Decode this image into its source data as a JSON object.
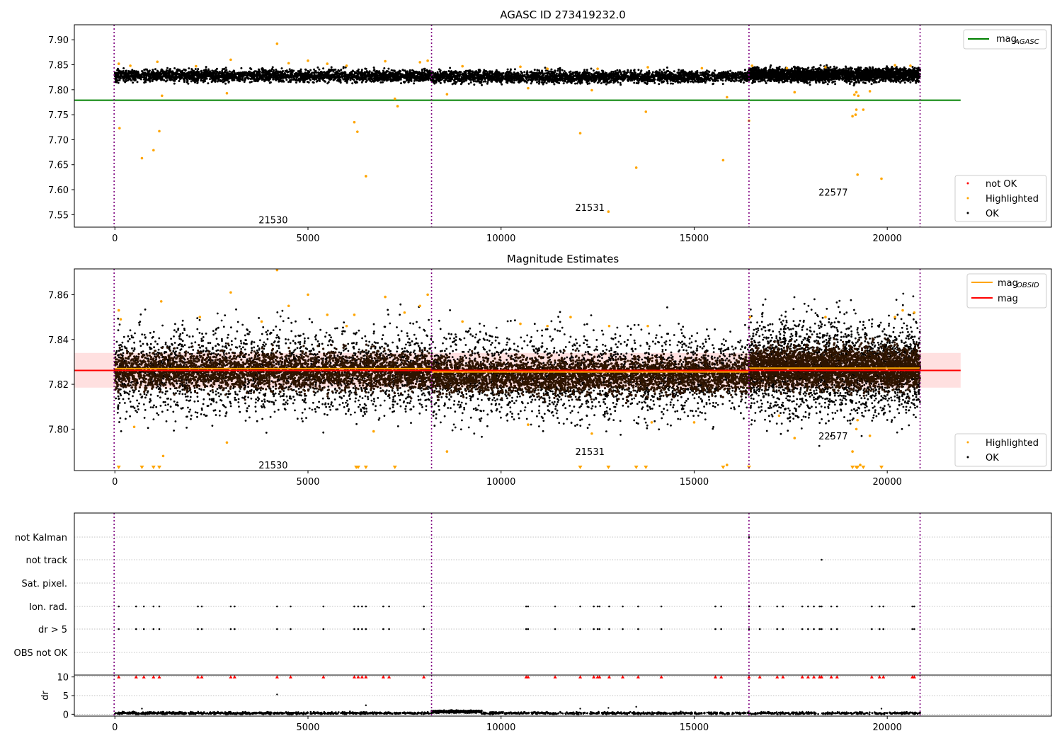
{
  "chart_data": [
    {
      "type": "scatter",
      "title": "AGASC ID 273419232.0",
      "xlabel": "",
      "ylabel": "",
      "xlim": [
        -1050,
        24250
      ],
      "ylim": [
        7.525,
        7.93
      ],
      "x_ticks": [
        0,
        5000,
        10000,
        15000,
        20000
      ],
      "y_ticks": [
        7.55,
        7.6,
        7.65,
        7.7,
        7.75,
        7.8,
        7.85,
        7.9
      ],
      "y_tick_labels": [
        "7.55",
        "7.60",
        "7.65",
        "7.70",
        "7.75",
        "7.80",
        "7.85",
        "7.90"
      ],
      "grid": false,
      "obsid_boundaries": [
        -20,
        8200,
        16420,
        20850
      ],
      "obsid_labels": [
        {
          "text": "21530",
          "x": 4100,
          "y": 7.54
        },
        {
          "text": "21531",
          "x": 12300,
          "y": 7.565
        },
        {
          "text": "22577",
          "x": 18600,
          "y": 7.595
        }
      ],
      "lines": [
        {
          "name": "mag_AGASC",
          "label_main": "mag",
          "label_sub": "AGASC",
          "color": "#008000",
          "y": 7.779,
          "x": [
            -1050,
            21900
          ]
        }
      ],
      "ok_band": {
        "x_range": [
          0,
          20850
        ],
        "segments": [
          {
            "x": [
              0,
              8200
            ],
            "center": 7.828,
            "spread": 0.012
          },
          {
            "x": [
              8200,
              16420
            ],
            "center": 7.826,
            "spread": 0.012
          },
          {
            "x": [
              16420,
              20850
            ],
            "center": 7.83,
            "spread": 0.014
          }
        ],
        "color": "#000000"
      },
      "highlighted_points": [
        [
          120,
          7.723
        ],
        [
          700,
          7.663
        ],
        [
          1000,
          7.679
        ],
        [
          1150,
          7.717
        ],
        [
          1220,
          7.788
        ],
        [
          2900,
          7.793
        ],
        [
          6200,
          7.735
        ],
        [
          6280,
          7.716
        ],
        [
          6500,
          7.627
        ],
        [
          7250,
          7.782
        ],
        [
          7320,
          7.767
        ],
        [
          8600,
          7.791
        ],
        [
          10700,
          7.803
        ],
        [
          12050,
          7.713
        ],
        [
          12350,
          7.799
        ],
        [
          12780,
          7.556
        ],
        [
          13500,
          7.644
        ],
        [
          13750,
          7.756
        ],
        [
          15750,
          7.659
        ],
        [
          15850,
          7.785
        ],
        [
          16420,
          7.738
        ],
        [
          17600,
          7.795
        ],
        [
          19100,
          7.747
        ],
        [
          19180,
          7.75
        ],
        [
          19200,
          7.76
        ],
        [
          19230,
          7.63
        ],
        [
          19380,
          7.76
        ],
        [
          19550,
          7.797
        ],
        [
          19850,
          7.622
        ],
        [
          4200,
          7.892
        ],
        [
          3000,
          7.86
        ],
        [
          4500,
          7.853
        ],
        [
          5000,
          7.858
        ],
        [
          5500,
          7.852
        ],
        [
          6000,
          7.848
        ],
        [
          7000,
          7.857
        ],
        [
          7900,
          7.855
        ],
        [
          8100,
          7.858
        ],
        [
          9000,
          7.847
        ],
        [
          10500,
          7.846
        ],
        [
          11200,
          7.842
        ],
        [
          12500,
          7.842
        ],
        [
          13800,
          7.845
        ],
        [
          15200,
          7.843
        ],
        [
          16500,
          7.848
        ],
        [
          17400,
          7.843
        ],
        [
          18400,
          7.845
        ],
        [
          20200,
          7.849
        ],
        [
          20600,
          7.848
        ],
        [
          100,
          7.852
        ],
        [
          400,
          7.848
        ],
        [
          1100,
          7.856
        ],
        [
          2100,
          7.847
        ],
        [
          19150,
          7.79
        ],
        [
          19200,
          7.795
        ],
        [
          19250,
          7.788
        ]
      ],
      "legend": {
        "position": "lower-right",
        "entries": [
          {
            "label": "not OK",
            "color": "#ff0000"
          },
          {
            "label": "Highlighted",
            "color": "#ffa500"
          },
          {
            "label": "OK",
            "color": "#000000"
          }
        ]
      },
      "legend_lines": {
        "position": "upper-right"
      }
    },
    {
      "type": "scatter",
      "title": "Magnitude Estimates",
      "xlabel": "",
      "ylabel": "",
      "xlim": [
        -1050,
        24250
      ],
      "ylim": [
        7.7815,
        7.8715
      ],
      "x_ticks": [
        0,
        5000,
        10000,
        15000,
        20000
      ],
      "y_ticks": [
        7.8,
        7.82,
        7.84,
        7.86
      ],
      "y_tick_labels": [
        "7.80",
        "7.82",
        "7.84",
        "7.86"
      ],
      "grid": false,
      "obsid_boundaries": [
        -20,
        8200,
        16420,
        20850
      ],
      "obsid_labels": [
        {
          "text": "21530",
          "x": 4100,
          "y": 7.784
        },
        {
          "text": "21531",
          "x": 12300,
          "y": 7.79
        },
        {
          "text": "22577",
          "x": 18600,
          "y": 7.797
        }
      ],
      "mag": {
        "value": 7.8262,
        "band": [
          7.8185,
          7.834
        ],
        "color": "#ff0000",
        "x": [
          -1050,
          21900
        ]
      },
      "mag_obsid": [
        {
          "x": [
            0,
            8200
          ],
          "y": 7.827
        },
        {
          "x": [
            8200,
            16420
          ],
          "y": 7.8255
        },
        {
          "x": [
            16420,
            20850
          ],
          "y": 7.8272
        }
      ],
      "ok_band": {
        "segments": [
          {
            "x": [
              0,
              8200
            ],
            "center": 7.826,
            "spread": 0.009
          },
          {
            "x": [
              8200,
              16420
            ],
            "center": 7.824,
            "spread": 0.009
          },
          {
            "x": [
              16420,
              20850
            ],
            "center": 7.8275,
            "spread": 0.01
          }
        ],
        "color": "#000000",
        "core_color": "#2e1400"
      },
      "highlighted_points": [
        [
          100,
          7.853
        ],
        [
          150,
          7.849
        ],
        [
          500,
          7.801
        ],
        [
          1200,
          7.857
        ],
        [
          1250,
          7.788
        ],
        [
          2200,
          7.85
        ],
        [
          3000,
          7.861
        ],
        [
          2900,
          7.794
        ],
        [
          3800,
          7.848
        ],
        [
          4200,
          7.871
        ],
        [
          4500,
          7.855
        ],
        [
          5000,
          7.86
        ],
        [
          5500,
          7.851
        ],
        [
          6000,
          7.846
        ],
        [
          6200,
          7.851
        ],
        [
          6700,
          7.799
        ],
        [
          7000,
          7.859
        ],
        [
          7500,
          7.852
        ],
        [
          7900,
          7.855
        ],
        [
          8100,
          7.86
        ],
        [
          8600,
          7.79
        ],
        [
          9000,
          7.848
        ],
        [
          10500,
          7.847
        ],
        [
          10700,
          7.802
        ],
        [
          11200,
          7.846
        ],
        [
          11800,
          7.85
        ],
        [
          12350,
          7.798
        ],
        [
          12800,
          7.846
        ],
        [
          13800,
          7.846
        ],
        [
          13900,
          7.803
        ],
        [
          15000,
          7.803
        ],
        [
          15850,
          7.784
        ],
        [
          16450,
          7.85
        ],
        [
          17200,
          7.806
        ],
        [
          17600,
          7.796
        ],
        [
          18400,
          7.85
        ],
        [
          19100,
          7.79
        ],
        [
          19200,
          7.8
        ],
        [
          19230,
          7.804
        ],
        [
          19300,
          7.784
        ],
        [
          19550,
          7.797
        ],
        [
          20200,
          7.85
        ],
        [
          20400,
          7.853
        ],
        [
          20700,
          7.852
        ]
      ],
      "below_range_markers_x": [
        100,
        700,
        1000,
        1150,
        6250,
        6300,
        6500,
        7250,
        12050,
        12780,
        13500,
        13750,
        15750,
        16420,
        19100,
        19200,
        19230,
        19380,
        19850
      ],
      "legend": {
        "position": "lower-right",
        "entries": [
          {
            "label": "Highlighted",
            "color": "#ffa500"
          },
          {
            "label": "OK",
            "color": "#000000"
          }
        ]
      },
      "legend_lines": {
        "position": "upper-right",
        "entries": [
          {
            "label_main": "mag",
            "label_sub": "OBSID",
            "color": "#ffa500"
          },
          {
            "label_main": "mag",
            "label_sub": "",
            "color": "#ff0000"
          }
        ]
      }
    },
    {
      "type": "scatter",
      "title": "",
      "xlim": [
        -1050,
        24250
      ],
      "categories": [
        "not Kalman",
        "not track",
        "Sat. pixel.",
        "Ion. rad.",
        "dr > 5",
        "OBS not OK"
      ],
      "grid": "horizontal dotted",
      "obsid_boundaries": [
        -20,
        8200,
        16420,
        20850
      ],
      "flag_events": {
        "not Kalman": [
          16420
        ],
        "not track": [
          18300
        ],
        "Sat. pixel.": [],
        "Ion. rad.": [
          100,
          550,
          750,
          1000,
          1150,
          2150,
          2250,
          3000,
          3100,
          4200,
          4550,
          5400,
          6200,
          6300,
          6400,
          6500,
          6950,
          7100,
          8000,
          10650,
          10700,
          11400,
          12050,
          12400,
          12500,
          12550,
          12800,
          13150,
          13550,
          14150,
          15550,
          15700,
          16420,
          16700,
          17150,
          17300,
          17800,
          17950,
          18100,
          18250,
          18300,
          18550,
          18700,
          19600,
          19800,
          19900,
          20650,
          20700
        ],
        "dr > 5": [
          100,
          550,
          750,
          1000,
          1150,
          2150,
          2250,
          3000,
          3100,
          4200,
          4550,
          5400,
          6200,
          6300,
          6400,
          6500,
          6950,
          7100,
          8000,
          10650,
          10700,
          11400,
          12050,
          12400,
          12500,
          12550,
          12800,
          13150,
          13550,
          14150,
          15550,
          15700,
          16420,
          16700,
          17150,
          17300,
          17800,
          17950,
          18100,
          18250,
          18300,
          18550,
          18700,
          19600,
          19800,
          19900,
          20650,
          20700
        ],
        "OBS not OK": []
      }
    },
    {
      "type": "scatter",
      "title": "",
      "xlabel": "",
      "ylabel": "dr",
      "xlim": [
        -1050,
        24250
      ],
      "ylim": [
        -0.5,
        10.5
      ],
      "x_ticks": [
        0,
        5000,
        10000,
        15000,
        20000
      ],
      "y_ticks": [
        0,
        5,
        10
      ],
      "obsid_boundaries": [
        -20,
        8200,
        16420,
        20850
      ],
      "dr_baseline": [
        {
          "x": [
            0,
            8200
          ],
          "y": 0.3
        },
        {
          "x": [
            8200,
            9500
          ],
          "y": 0.7
        },
        {
          "x": [
            9500,
            20850
          ],
          "y": 0.3
        }
      ],
      "dr_outliers": [
        [
          700,
          1.5
        ],
        [
          4200,
          5.3
        ],
        [
          6500,
          2.4
        ],
        [
          12050,
          1.5
        ],
        [
          12780,
          1.7
        ],
        [
          13500,
          2.0
        ],
        [
          19850,
          1.5
        ]
      ],
      "capped_points_at_10": [
        100,
        550,
        750,
        1000,
        1150,
        2150,
        2250,
        3000,
        3100,
        4200,
        4550,
        5400,
        6200,
        6300,
        6400,
        6500,
        6950,
        7100,
        8000,
        10650,
        10700,
        11400,
        12050,
        12400,
        12500,
        12550,
        12800,
        13150,
        13550,
        14150,
        15550,
        15700,
        16420,
        16700,
        17150,
        17300,
        17800,
        17950,
        18100,
        18250,
        18300,
        18550,
        18700,
        19600,
        19800,
        19900,
        20650,
        20700
      ]
    }
  ],
  "colors": {
    "ok": "#000000",
    "highlighted": "#ffa500",
    "not_ok": "#ff0000",
    "agasc_line": "#008000",
    "mag_line": "#ff0000",
    "obsid_line": "#ffa500",
    "boundary": "#800080"
  }
}
